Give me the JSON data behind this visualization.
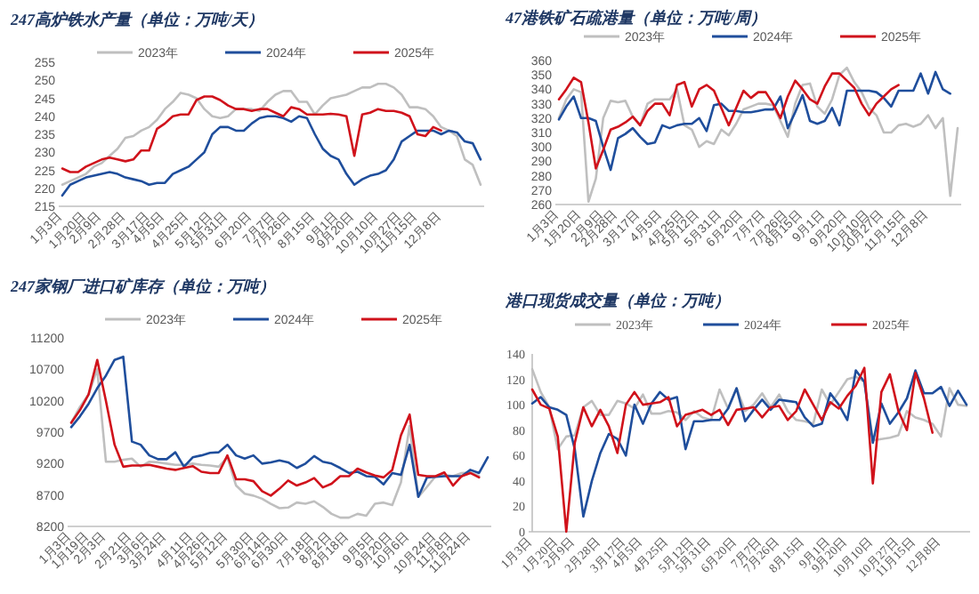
{
  "chart_data": [
    {
      "type": "line",
      "title": "247高炉铁水产量（单位：万吨/天）",
      "legend": "top",
      "categories": [
        "1月3日",
        null,
        null,
        "1月20日",
        null,
        "2月9日",
        null,
        null,
        "2月28日",
        null,
        null,
        "3月17日",
        null,
        "4月5日",
        null,
        null,
        "4月25日",
        null,
        null,
        "5月12日",
        null,
        "5月31日",
        null,
        null,
        "6月20日",
        null,
        null,
        "7月7日",
        null,
        "7月26日",
        null,
        null,
        "8月15日",
        null,
        null,
        "9月1日",
        null,
        "9月20日",
        null,
        null,
        "10月10日",
        null,
        null,
        "10月27日",
        null,
        "11月15日",
        null,
        null,
        "12月8日",
        null,
        null,
        null,
        null,
        null
      ],
      "ylim": [
        215,
        255
      ],
      "yticks": [
        215,
        220,
        225,
        230,
        235,
        240,
        245,
        250,
        255
      ],
      "series": [
        {
          "name": "2023年",
          "color": "#bfbfbf",
          "values": [
            221,
            222,
            223,
            224,
            226,
            227,
            229,
            231,
            234,
            234.5,
            236,
            237,
            239,
            242,
            244,
            246.5,
            246,
            245,
            242,
            240,
            239.5,
            240,
            242,
            242,
            242,
            241.5,
            244,
            246,
            247,
            247,
            244,
            244,
            240.5,
            243,
            245,
            245.5,
            246,
            247,
            248,
            248,
            249,
            249,
            248,
            246,
            242.5,
            242.5,
            242,
            240,
            237,
            236,
            234.5,
            228,
            226.5,
            221
          ]
        },
        {
          "name": "2024年",
          "color": "#1f4e9c",
          "values": [
            218,
            221,
            222,
            223,
            223.5,
            224,
            224.5,
            224,
            223,
            222.5,
            222,
            221,
            221.5,
            221.5,
            224,
            225,
            226,
            228,
            230,
            235,
            237,
            237,
            236,
            236,
            238,
            239.5,
            240,
            240,
            239.5,
            238.5,
            240,
            239.5,
            235,
            231,
            229,
            228,
            224,
            221,
            222.5,
            223.5,
            224,
            225,
            228,
            233,
            234.5,
            236,
            236,
            236,
            235,
            236,
            235.5,
            233,
            232.5,
            228
          ]
        },
        {
          "name": "2025年",
          "color": "#d0121b",
          "values": [
            225.5,
            224.5,
            224.5,
            226,
            227,
            228,
            228.5,
            228,
            227.5,
            228,
            230.5,
            230.5,
            236.5,
            238,
            240,
            240.5,
            240.5,
            244.5,
            245.5,
            245.5,
            244.5,
            243,
            242,
            242,
            241.5,
            242,
            242,
            241,
            240,
            242.5,
            242,
            240.5,
            240.5,
            240.5,
            240.7,
            240.5,
            240,
            229,
            240.5,
            241,
            242,
            241.5,
            241.5,
            241,
            240,
            235,
            234.5,
            237,
            236,
            null,
            null,
            null,
            null,
            null
          ]
        }
      ]
    },
    {
      "type": "line",
      "title": "47港铁矿石疏港量（单位：万吨/周）",
      "legend": "top",
      "categories": [
        "1月3日",
        null,
        null,
        "1月20日",
        null,
        null,
        "2月9日",
        null,
        "2月28日",
        null,
        null,
        "3月17日",
        null,
        null,
        "4月5日",
        null,
        null,
        "4月25日",
        null,
        "5月12日",
        null,
        null,
        "5月31日",
        null,
        null,
        "6月20日",
        null,
        null,
        "7月7日",
        null,
        null,
        "7月26日",
        null,
        "8月15日",
        null,
        null,
        "9月1日",
        null,
        null,
        "9月20日",
        null,
        null,
        "10月10日",
        null,
        "10月27日",
        null,
        null,
        "11月15日",
        null,
        null,
        "12月8日",
        null,
        null,
        null,
        null
      ],
      "ylim": [
        260,
        360
      ],
      "yticks": [
        260,
        270,
        280,
        290,
        300,
        310,
        320,
        330,
        340,
        350,
        360
      ],
      "series": [
        {
          "name": "2023年",
          "color": "#bfbfbf",
          "values": [
            320,
            333,
            340,
            338,
            262,
            278,
            320,
            332,
            331,
            332,
            321,
            315,
            330,
            333,
            333,
            333,
            340,
            315,
            312,
            300,
            304,
            302,
            312,
            308,
            316,
            326,
            328,
            330,
            330,
            329,
            318,
            307,
            330,
            343,
            344,
            328,
            323,
            333,
            350,
            355,
            345,
            338,
            327,
            322,
            310,
            310,
            315,
            316,
            314,
            316,
            322,
            313,
            320,
            266,
            313
          ]
        },
        {
          "name": "2024年",
          "color": "#1f4e9c",
          "values": [
            319,
            328,
            335,
            320,
            320,
            318,
            300,
            284,
            306,
            309,
            313,
            307,
            302,
            303,
            315,
            313,
            315,
            316,
            316,
            320,
            311,
            329,
            330,
            325,
            325,
            324,
            324,
            325,
            326,
            326,
            335,
            313,
            324,
            336,
            318,
            316,
            318,
            327,
            315,
            339,
            339,
            339,
            339,
            338,
            334,
            328,
            339,
            339,
            339,
            351,
            337,
            352,
            340,
            337,
            null
          ]
        },
        {
          "name": "2025年",
          "color": "#d0121b",
          "values": [
            333,
            340,
            348,
            345,
            317,
            285,
            298,
            312,
            314,
            317,
            321,
            315,
            325,
            330,
            330,
            322,
            343,
            345,
            328,
            340,
            343,
            339,
            327,
            315,
            327,
            339,
            334,
            338,
            338,
            330,
            320,
            335,
            346,
            340,
            333,
            330,
            342,
            351,
            351,
            346,
            341,
            330,
            322,
            330,
            335,
            340,
            343,
            null,
            null,
            null,
            null,
            null,
            null,
            null,
            null
          ]
        }
      ]
    },
    {
      "type": "line",
      "title": "247家钢厂进口矿库存（单位：万吨）",
      "legend": "top",
      "categories": [
        "1月3日",
        null,
        "1月19日",
        null,
        "2月3日",
        null,
        null,
        "2月21日",
        null,
        "3月6日",
        null,
        "3月24日",
        null,
        null,
        "4月11日",
        null,
        "4月26日",
        null,
        "5月12日",
        null,
        null,
        "5月30日",
        null,
        "6月14日",
        null,
        "6月30日",
        null,
        null,
        "7月18日",
        null,
        "8月2日",
        null,
        "8月18日",
        null,
        null,
        "9月5日",
        null,
        "9月20日",
        null,
        "10月6日",
        null,
        null,
        "10月24日",
        null,
        "11月8日",
        null,
        "11月24日",
        null,
        null
      ],
      "ylim": [
        8200,
        11200
      ],
      "yticks": [
        8200,
        8700,
        9200,
        9700,
        10200,
        10700,
        11200
      ],
      "series": [
        {
          "name": "2023年",
          "color": "#bfbfbf",
          "values": [
            9850,
            10100,
            10300,
            10700,
            9230,
            9230,
            9260,
            9280,
            9150,
            9230,
            9220,
            9200,
            9180,
            9180,
            9200,
            9180,
            9170,
            9150,
            9300,
            8850,
            8720,
            8690,
            8640,
            8560,
            8490,
            8500,
            8580,
            8560,
            8600,
            8510,
            8400,
            8340,
            8340,
            8400,
            8370,
            8560,
            8580,
            8540,
            8900,
            9800,
            8670,
            8830,
            9000,
            9020,
            9000,
            9050,
            9060,
            9000,
            null
          ]
        },
        {
          "name": "2024年",
          "color": "#1f4e9c",
          "values": [
            9780,
            9950,
            10150,
            10400,
            10600,
            10850,
            10900,
            9550,
            9500,
            9330,
            9270,
            9270,
            9380,
            9150,
            9300,
            9330,
            9370,
            9380,
            9500,
            9330,
            9280,
            9330,
            9200,
            9220,
            9250,
            9220,
            9130,
            9200,
            9320,
            9230,
            9200,
            9130,
            9050,
            9070,
            9000,
            8990,
            8870,
            9050,
            9020,
            9500,
            8670,
            8980,
            8990,
            9000,
            9000,
            9000,
            9100,
            9050,
            9300
          ]
        },
        {
          "name": "2025年",
          "color": "#d0121b",
          "values": [
            9850,
            10050,
            10300,
            10850,
            10200,
            9500,
            9150,
            9170,
            9170,
            9180,
            9150,
            9120,
            9100,
            9130,
            9160,
            9070,
            9050,
            9050,
            9330,
            8950,
            8950,
            8920,
            8760,
            8690,
            8800,
            8930,
            8850,
            8900,
            8970,
            8820,
            8880,
            9000,
            9000,
            9120,
            9060,
            9010,
            8980,
            9100,
            9650,
            9980,
            9020,
            9000,
            9000,
            9060,
            8850,
            9000,
            9050,
            8980,
            null
          ]
        }
      ]
    },
    {
      "type": "line",
      "title": "港口现货成交量（单位：万吨）",
      "legend": "top",
      "categories": [
        "1月3日",
        null,
        null,
        "1月20日",
        null,
        "2月9日",
        null,
        null,
        "2月28日",
        null,
        null,
        "3月17日",
        null,
        "4月5日",
        null,
        null,
        "4月25日",
        null,
        null,
        "5月12日",
        null,
        "5月31日",
        null,
        null,
        "6月20日",
        null,
        null,
        "7月7日",
        null,
        "7月26日",
        null,
        null,
        "8月15日",
        null,
        null,
        "9月1日",
        null,
        "9月20日",
        null,
        null,
        "10月10日",
        null,
        null,
        "10月27日",
        null,
        "11月15日",
        null,
        null,
        "12月8日",
        null,
        null,
        null
      ],
      "ylim": [
        0,
        140
      ],
      "yticks": [
        0,
        20,
        40,
        60,
        80,
        100,
        120,
        140
      ],
      "series": [
        {
          "name": "2023年",
          "color": "#bfbfbf",
          "values": [
            128,
            110,
            98,
            65,
            75,
            76,
            98,
            103,
            92,
            92,
            103,
            101,
            97,
            108,
            93,
            93,
            95,
            94,
            88,
            95,
            90,
            88,
            112,
            97,
            113,
            95,
            100,
            109,
            98,
            108,
            95,
            88,
            87,
            85,
            112,
            100,
            110,
            120,
            122,
            118,
            72,
            73,
            74,
            76,
            95,
            90,
            88,
            85,
            75,
            113,
            100,
            99
          ]
        },
        {
          "name": "2024年",
          "color": "#1f4e9c",
          "values": [
            101,
            106,
            98,
            96,
            92,
            65,
            12,
            40,
            62,
            77,
            73,
            60,
            100,
            85,
            101,
            110,
            104,
            106,
            65,
            87,
            87,
            88,
            88,
            97,
            113,
            87,
            96,
            104,
            96,
            104,
            103,
            102,
            90,
            83,
            85,
            109,
            100,
            88,
            127,
            118,
            70,
            101,
            85,
            94,
            105,
            127,
            109,
            109,
            114,
            99,
            111,
            100
          ]
        },
        {
          "name": "2025年",
          "color": "#d0121b",
          "values": [
            112,
            100,
            97,
            75,
            0,
            70,
            98,
            83,
            96,
            83,
            62,
            100,
            110,
            100,
            101,
            102,
            106,
            83,
            92,
            94,
            96,
            92,
            96,
            84,
            96,
            97,
            98,
            90,
            98,
            99,
            88,
            95,
            112,
            100,
            88,
            102,
            97,
            107,
            115,
            129,
            38,
            110,
            124,
            95,
            80,
            125,
            105,
            78,
            null,
            null,
            null,
            null
          ]
        }
      ]
    }
  ]
}
